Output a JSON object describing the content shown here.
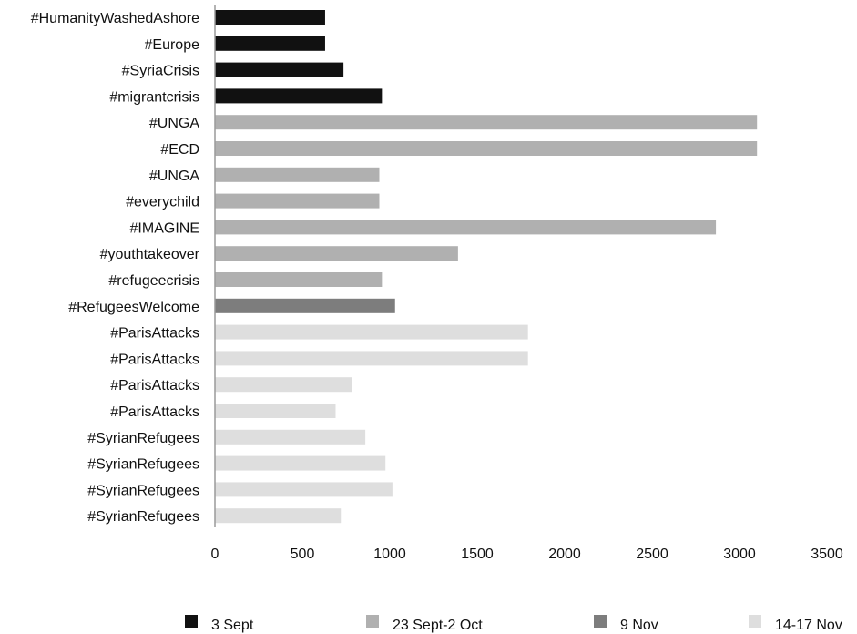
{
  "chart_data": {
    "type": "bar",
    "orientation": "horizontal",
    "xlim": [
      0,
      3500
    ],
    "x_ticks": [
      "0",
      "500",
      "1000",
      "1500",
      "2000",
      "2500",
      "3000",
      "3500"
    ],
    "grid": false,
    "legend_placement": "bottom",
    "series": [
      {
        "name": "3 Sept",
        "color": "#111111"
      },
      {
        "name": "23 Sept-2 Oct",
        "color": "#b0b0b0"
      },
      {
        "name": "9 Nov",
        "color": "#7d7d7d"
      },
      {
        "name": "14-17 Nov",
        "color": "#dedede"
      }
    ],
    "bars": [
      {
        "label": "#HumanityWashedAshore",
        "value": 630,
        "series": 0
      },
      {
        "label": "#Europe",
        "value": 630,
        "series": 0
      },
      {
        "label": "#SyriaCrisis",
        "value": 735,
        "series": 0
      },
      {
        "label": "#migrantcrisis",
        "value": 955,
        "series": 0
      },
      {
        "label": "#UNGA",
        "value": 3100,
        "series": 1
      },
      {
        "label": "#ECD",
        "value": 3100,
        "series": 1
      },
      {
        "label": "#UNGA",
        "value": 940,
        "series": 1
      },
      {
        "label": "#everychild",
        "value": 940,
        "series": 1
      },
      {
        "label": "#IMAGINE",
        "value": 2865,
        "series": 1
      },
      {
        "label": "#youthtakeover",
        "value": 1390,
        "series": 1
      },
      {
        "label": "#refugeecrisis",
        "value": 955,
        "series": 1
      },
      {
        "label": "#RefugeesWelcome",
        "value": 1030,
        "series": 2
      },
      {
        "label": "#ParisAttacks",
        "value": 1790,
        "series": 3
      },
      {
        "label": "#ParisAttacks",
        "value": 1790,
        "series": 3
      },
      {
        "label": "#ParisAttacks",
        "value": 785,
        "series": 3
      },
      {
        "label": "#ParisAttacks",
        "value": 690,
        "series": 3
      },
      {
        "label": "#SyrianRefugees",
        "value": 860,
        "series": 3
      },
      {
        "label": "#SyrianRefugees",
        "value": 975,
        "series": 3
      },
      {
        "label": "#SyrianRefugees",
        "value": 1015,
        "series": 3
      },
      {
        "label": "#SyrianRefugees",
        "value": 720,
        "series": 3
      }
    ]
  }
}
